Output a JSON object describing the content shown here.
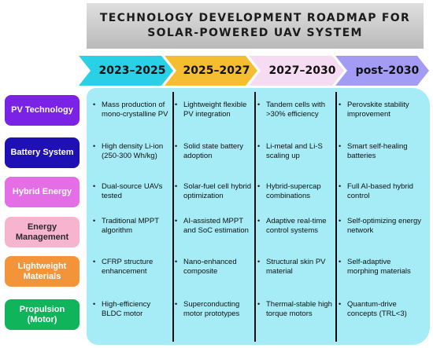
{
  "title": {
    "line1": "TECHNOLOGY DEVELOPMENT ROADMAP FOR",
    "line2": "SOLAR-POWERED UAV SYSTEM"
  },
  "periods": [
    {
      "label": "2023–2025",
      "color": "#2ad0e6"
    },
    {
      "label": "2025–2027",
      "color": "#f5be32"
    },
    {
      "label": "2027–2030",
      "color": "#f6dcf2"
    },
    {
      "label": "post–2030",
      "color": "#a49cf4"
    }
  ],
  "rows": [
    {
      "label": "PV Technology",
      "color": "#7a22e6",
      "text_color": "#ffffff",
      "cells": [
        "Mass production of mono-crystalline PV",
        "Lightweight flexible PV integration",
        "Tandem cells with >30% efficiency",
        "Perovskite stability improvement"
      ]
    },
    {
      "label": "Battery System",
      "color": "#1f10b5",
      "text_color": "#ffffff",
      "cells": [
        "High density Li-ion (250-300 Wh/kg)",
        "Solid state battery adoption",
        "Li-metal and Li-S scaling up",
        "Smart self-healing batteries"
      ]
    },
    {
      "label": "Hybrid Energy",
      "color": "#e46ee6",
      "text_color": "#ffffff",
      "cells": [
        "Dual-source UAVs tested",
        "Solar-fuel cell hybrid optimization",
        "Hybrid-supercap combinations",
        "Full AI-based hybrid control"
      ]
    },
    {
      "label": "Energy Management",
      "color": "#f7b4cf",
      "text_color": "#2a2a2a",
      "cells": [
        "Traditional MPPT algorithm",
        "AI-assisted MPPT and SoC estimation",
        "Adaptive real-time control systems",
        "Self-optimizing energy network"
      ]
    },
    {
      "label": "Lightweight Materials",
      "color": "#f4943a",
      "text_color": "#ffffff",
      "cells": [
        "CFRP structure enhancement",
        "Nano-enhanced composite",
        "Structural skin PV material",
        "Self-adaptive morphing materials"
      ]
    },
    {
      "label": "Propulsion (Motor)",
      "color": "#10b45a",
      "text_color": "#ffffff",
      "cells": [
        "High-efficiency BLDC motor",
        "Superconducting motor prototypes",
        "Thermal-stable high torque motors",
        "Quantum-drive concepts (TRL<3)"
      ]
    }
  ],
  "bullet": "•",
  "panel_color": "#a6ecf7"
}
